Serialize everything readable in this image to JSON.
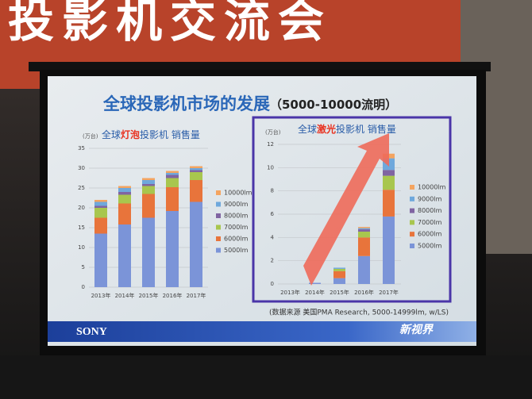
{
  "banner": "投影机交流会",
  "slide_title": "全球投影机市场的发展",
  "slide_subtitle": "（5000-10000流明）",
  "source": "(数据来源 美国PMA Research, 5000-14999lm, w/LS)",
  "brand": "SONY",
  "logo": "新视界",
  "chart_data": [
    {
      "type": "stacked_bar",
      "title": [
        "全球",
        "灯泡",
        "投影机 销售量"
      ],
      "title_highlight": 1,
      "title_highlight_color": "#e8301e",
      "y_unit": "(万台)",
      "categories": [
        "2013年",
        "2014年",
        "2015年",
        "2016年",
        "2017年"
      ],
      "ylim": [
        0,
        35
      ],
      "yticks": [
        0,
        5,
        10,
        15,
        20,
        25,
        30,
        35
      ],
      "grid": true,
      "series": [
        {
          "name": "5000lm",
          "color": "#7b94d8",
          "values": [
            13.5,
            15.8,
            17.5,
            19.2,
            21.5
          ]
        },
        {
          "name": "6000lm",
          "color": "#e8743b",
          "values": [
            4,
            5.3,
            6,
            6,
            5.5
          ]
        },
        {
          "name": "7000lm",
          "color": "#a8c64e",
          "values": [
            2.5,
            2.2,
            2,
            2.3,
            2
          ]
        },
        {
          "name": "8000lm",
          "color": "#8064a2",
          "values": [
            0.5,
            0.7,
            0.5,
            0.8,
            0.5
          ]
        },
        {
          "name": "9000lm",
          "color": "#6fa8dc",
          "values": [
            1,
            1,
            1,
            0.5,
            0.5
          ]
        },
        {
          "name": "10000lm",
          "color": "#f4a460",
          "values": [
            0.5,
            0.5,
            0.5,
            0.5,
            0.5
          ]
        }
      ]
    },
    {
      "type": "stacked_bar",
      "title": [
        "全球",
        "激光",
        "投影机 销售量"
      ],
      "title_highlight": 1,
      "title_highlight_color": "#e8301e",
      "y_unit": "(万台)",
      "categories": [
        "2013年",
        "2014年",
        "2015年",
        "2016年",
        "2017年"
      ],
      "ylim": [
        0,
        12
      ],
      "yticks": [
        0,
        2,
        4,
        6,
        8,
        10,
        12
      ],
      "grid": true,
      "series": [
        {
          "name": "5000lm",
          "color": "#7b94d8",
          "values": [
            0,
            0.1,
            0.5,
            2.4,
            5.8
          ]
        },
        {
          "name": "6000lm",
          "color": "#e8743b",
          "values": [
            0,
            0,
            0.6,
            1.6,
            2.3
          ]
        },
        {
          "name": "7000lm",
          "color": "#a8c64e",
          "values": [
            0,
            0,
            0.2,
            0.5,
            1.2
          ]
        },
        {
          "name": "8000lm",
          "color": "#8064a2",
          "values": [
            0,
            0,
            0,
            0.2,
            0.5
          ]
        },
        {
          "name": "9000lm",
          "color": "#6fa8dc",
          "values": [
            0,
            0,
            0.1,
            0.1,
            1
          ]
        },
        {
          "name": "10000lm",
          "color": "#f4a460",
          "values": [
            0,
            0,
            0,
            0.1,
            0.4
          ]
        }
      ]
    }
  ]
}
